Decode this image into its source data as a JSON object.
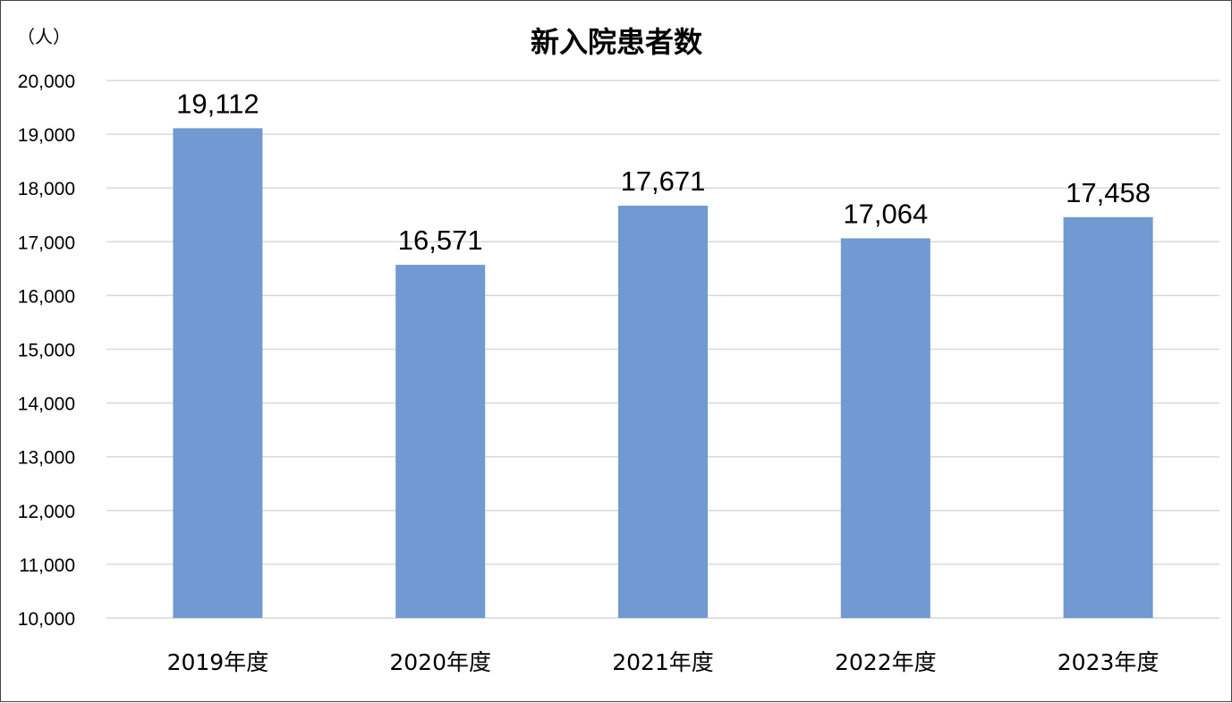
{
  "chart_data": {
    "type": "bar",
    "title": "新入院患者数",
    "ylabel": "（人）",
    "xlabel": "",
    "categories": [
      "2019年度",
      "2020年度",
      "2021年度",
      "2022年度",
      "2023年度"
    ],
    "values": [
      19112,
      16571,
      17671,
      17064,
      17458
    ],
    "data_labels": [
      "19,112",
      "16,571",
      "17,671",
      "17,064",
      "17,458"
    ],
    "ylim": [
      10000,
      20000
    ],
    "yticks": [
      10000,
      11000,
      12000,
      13000,
      14000,
      15000,
      16000,
      17000,
      18000,
      19000,
      20000
    ],
    "ytick_labels": [
      "10,000",
      "11,000",
      "12,000",
      "13,000",
      "14,000",
      "15,000",
      "16,000",
      "17,000",
      "18,000",
      "19,000",
      "20,000"
    ],
    "grid": true,
    "legend": "none",
    "bar_color": "#7199d2",
    "grid_color": "#d9d9d9"
  }
}
